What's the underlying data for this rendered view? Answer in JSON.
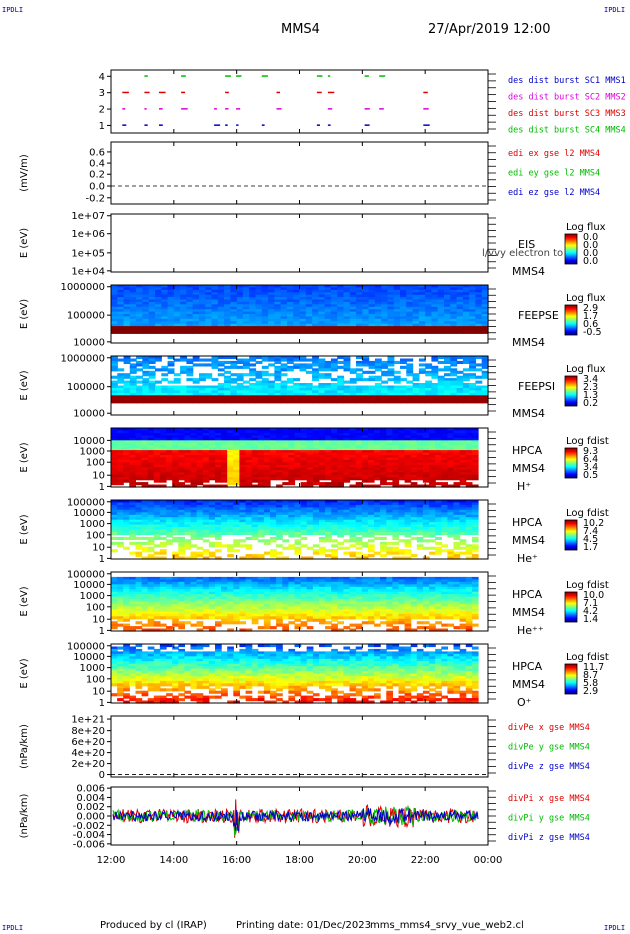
{
  "corner_labels": {
    "tl": "IPDLI",
    "tr": "IPDLI",
    "bl": "IPDLI",
    "br": "IPDLI"
  },
  "header": {
    "title": "MMS4",
    "datetime": "27/Apr/2019 12:00"
  },
  "footer": {
    "producer": "Produced by cl (IRAP)",
    "date": "Printing date: 01/Dec/2023",
    "file": "mms_mms4_srvy_vue_web2.cl"
  },
  "colors": {
    "red": "#e00000",
    "green": "#00bb00",
    "blue": "#0000cc",
    "magenta": "#dd00dd",
    "axis": "#000000"
  },
  "chart_data": {
    "type": "heatmap",
    "x_ticks": [
      "12:00",
      "14:00",
      "16:00",
      "18:00",
      "20:00",
      "22:00",
      "00:00"
    ],
    "x_range": [
      "12:00",
      "00:00"
    ],
    "panels": [
      {
        "id": "burst",
        "y_ticks": [
          "4",
          "3",
          "2",
          "1"
        ],
        "legend": [
          {
            "text": "des dist burst SC1 MMS1",
            "color": "#0000cc"
          },
          {
            "text": "des dist burst SC2 MMS2",
            "color": "#dd00dd"
          },
          {
            "text": "des dist burst SC3 MMS3",
            "color": "#e00000"
          },
          {
            "text": "des dist burst SC4 MMS4",
            "color": "#00bb00"
          }
        ]
      },
      {
        "id": "edi",
        "ylabel": "(mV/m)",
        "y_ticks": [
          "0.6",
          "0.4",
          "0.2",
          "0.0",
          "-0.2"
        ],
        "legend": [
          {
            "text": "edi ex gse l2 MMS4",
            "color": "#e00000"
          },
          {
            "text": "edi ey gse l2 MMS4",
            "color": "#00bb00"
          },
          {
            "text": "edi ez gse l2 MMS4",
            "color": "#0000cc"
          }
        ]
      },
      {
        "id": "eis",
        "ylabel": "E (eV)",
        "y_ticks": [
          "1e+07",
          "1e+06",
          "1e+05",
          "1e+04"
        ],
        "labels": [
          "EIS",
          "MMS4"
        ],
        "overlay": "l/vvy electron to",
        "cbar_title": "Log flux",
        "cbar_ticks": [
          "0.0",
          "0.0",
          "0.0",
          "0.0"
        ]
      },
      {
        "id": "feepse",
        "ylabel": "E (eV)",
        "y_ticks": [
          "1000000",
          "100000",
          "10000"
        ],
        "labels": [
          "FEEPSE",
          "MMS4"
        ],
        "cbar_title": "Log flux",
        "cbar_ticks": [
          "2.9",
          "1.7",
          "0.6",
          "-0.5"
        ]
      },
      {
        "id": "feepsi",
        "ylabel": "E (eV)",
        "y_ticks": [
          "1000000",
          "100000",
          "10000"
        ],
        "labels": [
          "FEEPSI",
          "MMS4"
        ],
        "cbar_title": "Log flux",
        "cbar_ticks": [
          "3.4",
          "2.3",
          "1.3",
          "0.2"
        ]
      },
      {
        "id": "hpca_h",
        "ylabel": "E (eV)",
        "y_ticks": [
          "10000",
          "1000",
          "100",
          "10",
          "1"
        ],
        "labels": [
          "HPCA",
          "MMS4",
          "H⁺"
        ],
        "cbar_title": "Log fdist",
        "cbar_ticks": [
          "9.3",
          "6.4",
          "3.4",
          "0.5"
        ]
      },
      {
        "id": "hpca_he",
        "ylabel": "E (eV)",
        "y_ticks": [
          "100000",
          "10000",
          "1000",
          "100",
          "10",
          "1"
        ],
        "labels": [
          "HPCA",
          "MMS4",
          "He⁺"
        ],
        "cbar_title": "Log fdist",
        "cbar_ticks": [
          "10.2",
          "7.4",
          "4.5",
          "1.7"
        ]
      },
      {
        "id": "hpca_hepp",
        "ylabel": "E (eV)",
        "y_ticks": [
          "100000",
          "10000",
          "1000",
          "100",
          "10",
          "1"
        ],
        "labels": [
          "HPCA",
          "MMS4",
          "He⁺⁺"
        ],
        "cbar_title": "Log fdist",
        "cbar_ticks": [
          "10.0",
          "7.1",
          "4.2",
          "1.4"
        ]
      },
      {
        "id": "hpca_o",
        "ylabel": "E (eV)",
        "y_ticks": [
          "100000",
          "10000",
          "1000",
          "100",
          "10",
          "1"
        ],
        "labels": [
          "HPCA",
          "MMS4",
          "O⁺"
        ],
        "cbar_title": "Log fdist",
        "cbar_ticks": [
          "11.7",
          "8.7",
          "5.8",
          "2.9"
        ]
      },
      {
        "id": "divpe",
        "ylabel": "(nPa/km)",
        "y_ticks": [
          "1e+21",
          "8e+20",
          "6e+20",
          "4e+20",
          "2e+20",
          "0"
        ],
        "legend": [
          {
            "text": "divPe x gse MMS4",
            "color": "#e00000"
          },
          {
            "text": "divPe y gse MMS4",
            "color": "#00bb00"
          },
          {
            "text": "divPe z gse MMS4",
            "color": "#0000cc"
          }
        ]
      },
      {
        "id": "divpi",
        "ylabel": "(nPa/km)",
        "y_ticks": [
          "0.006",
          "0.004",
          "0.002",
          "0.000",
          "-0.002",
          "-0.004",
          "-0.006"
        ],
        "legend": [
          {
            "text": "divPi x gse MMS4",
            "color": "#e00000"
          },
          {
            "text": "divPi y gse MMS4",
            "color": "#00bb00"
          },
          {
            "text": "divPi z gse MMS4",
            "color": "#0000cc"
          }
        ]
      }
    ]
  }
}
